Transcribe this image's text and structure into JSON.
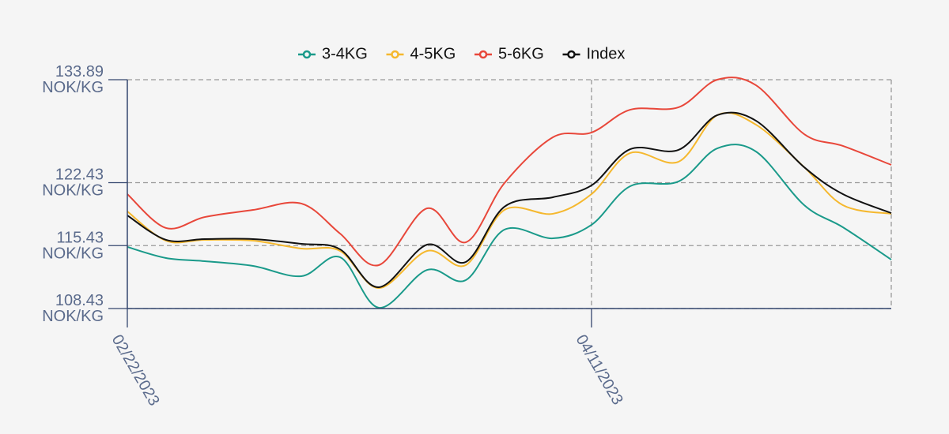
{
  "chart_data": {
    "type": "line",
    "x": [
      "02/22/2023",
      "02/26/2023",
      "03/02/2023",
      "03/07/2023",
      "03/12/2023",
      "03/16/2023",
      "03/20/2023",
      "03/25/2023",
      "03/29/2023",
      "04/02/2023",
      "04/07/2023",
      "04/11/2023",
      "04/15/2023",
      "04/20/2023",
      "04/24/2023",
      "04/28/2023",
      "05/03/2023",
      "05/07/2023",
      "05/12/2023"
    ],
    "series": [
      {
        "name": "3-4KG",
        "color": "#1a9a8a",
        "values": [
          115.28,
          114.05,
          113.7,
          113.17,
          112.03,
          114.14,
          108.52,
          112.73,
          111.59,
          117.21,
          116.24,
          117.74,
          122.04,
          122.57,
          126.25,
          125.9,
          119.93,
          117.47,
          113.87
        ]
      },
      {
        "name": "4-5KG",
        "color": "#f5b82e",
        "values": [
          119.23,
          115.98,
          116.07,
          115.98,
          115.1,
          114.84,
          110.71,
          114.84,
          113.26,
          119.4,
          118.97,
          121.16,
          125.73,
          124.76,
          129.94,
          128.89,
          124.15,
          119.93,
          118.97
        ]
      },
      {
        "name": "5-6KG",
        "color": "#e8473a",
        "values": [
          121.16,
          117.39,
          118.61,
          119.4,
          120.11,
          116.77,
          113.26,
          119.58,
          115.8,
          122.39,
          127.48,
          128.01,
          130.55,
          130.82,
          133.89,
          133.28,
          127.83,
          126.52,
          124.41
        ]
      },
      {
        "name": "Index",
        "color": "#111111",
        "values": [
          118.79,
          116.07,
          116.16,
          116.16,
          115.63,
          115.02,
          110.8,
          115.54,
          113.61,
          119.76,
          120.81,
          122.13,
          126.16,
          126.08,
          129.94,
          129.33,
          124.15,
          121.16,
          119.05
        ]
      }
    ],
    "xlim": [
      "02/22/2023",
      "05/12/2023"
    ],
    "xticks": [
      "02/22/2023",
      "04/11/2023"
    ],
    "ylim": [
      108.43,
      133.89
    ],
    "yticks": [
      {
        "value": 108.43,
        "label": "108.43 NOK/KG"
      },
      {
        "value": 115.43,
        "label": "115.43 NOK/KG"
      },
      {
        "value": 122.43,
        "label": "122.43 NOK/KG"
      },
      {
        "value": 133.89,
        "label": "133.89 NOK/KG"
      }
    ],
    "grid": true
  }
}
